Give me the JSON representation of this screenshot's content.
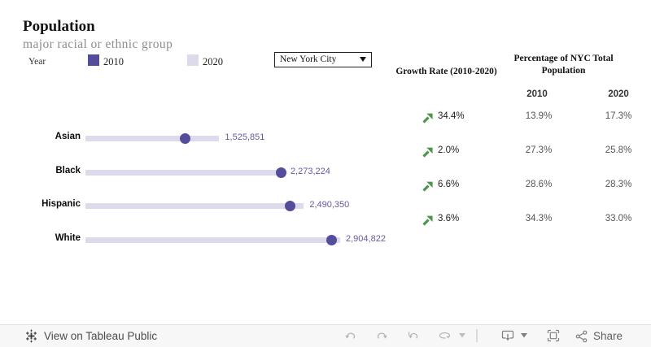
{
  "header": {
    "title": "Population",
    "subtitle": "major racial or ethnic group",
    "legend": {
      "label": "Year",
      "items": [
        {
          "label": "2010",
          "color": "#544c9c"
        },
        {
          "label": "2020",
          "color": "#dcdaeb"
        }
      ]
    },
    "region_filter": {
      "value": "New York City"
    }
  },
  "table": {
    "growth_header": "Growth Rate (2010-2020)",
    "pct_header": "Percentage of NYC Total Population",
    "col_2010": "2010",
    "col_2020": "2020"
  },
  "chart_data": {
    "type": "bar",
    "subtype": "horizontal dumbbell: light bar = 2020 population, dark dot = 2010 population",
    "title": "Population — major racial or ethnic group",
    "categories": [
      "Asian",
      "Black",
      "Hispanic",
      "White"
    ],
    "series": [
      {
        "name": "2010",
        "mark": "dot",
        "color": "#544c9c",
        "values": [
          1135306,
          2228651,
          2336163,
          2803882
        ],
        "note": "estimated from dot positions and growth rates; not labeled on chart"
      },
      {
        "name": "2020",
        "mark": "bar",
        "color": "#dcdaeb",
        "values": [
          1525851,
          2273224,
          2490350,
          2904822
        ]
      }
    ],
    "rows": [
      {
        "category": "Asian",
        "value_2010_est": 1135306,
        "value_2020": 1525851,
        "label_2020": "1,525,851",
        "growth": "34.4%",
        "pct_2010": "13.9%",
        "pct_2020": "17.3%"
      },
      {
        "category": "Black",
        "value_2010_est": 2228651,
        "value_2020": 2273224,
        "label_2020": "2,273,224",
        "growth": "2.0%",
        "pct_2010": "27.3%",
        "pct_2020": "25.8%"
      },
      {
        "category": "Hispanic",
        "value_2010_est": 2336163,
        "value_2020": 2490350,
        "label_2020": "2,490,350",
        "growth": "6.6%",
        "pct_2010": "28.6%",
        "pct_2020": "28.3%"
      },
      {
        "category": "White",
        "value_2010_est": 2803882,
        "value_2020": 2904822,
        "label_2020": "2,904,822",
        "growth": "3.6%",
        "pct_2010": "34.3%",
        "pct_2020": "33.0%"
      }
    ],
    "xlim": [
      0,
      2904822
    ],
    "grid": false,
    "legend_position": "top-left",
    "value_label_color": "#615aa6",
    "growth_arrow_color": "#4a9748"
  },
  "toolbar": {
    "view_label": "View on Tableau Public",
    "share_label": "Share",
    "icons": [
      "tableau-logo",
      "undo",
      "redo",
      "replay",
      "auto-update",
      "caret-down",
      "separator",
      "download-device",
      "caret-down",
      "fullscreen",
      "share"
    ]
  }
}
